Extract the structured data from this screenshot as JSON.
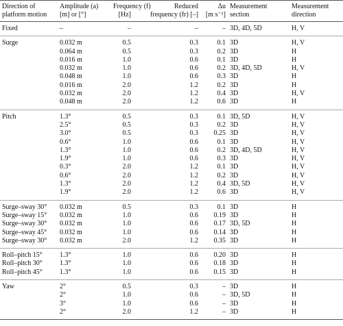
{
  "table": {
    "header": [
      [
        "Direction of",
        "platform motion"
      ],
      [
        "Amplitude (a)",
        "[m] or [°]"
      ],
      [
        "Frequency (f)",
        "[Hz]"
      ],
      [
        "Reduced",
        "frequency (fr) [–]"
      ],
      [
        "Δu",
        "[m s⁻¹]"
      ],
      [
        "Measurement",
        "section"
      ],
      [
        "Measurement",
        "direction"
      ]
    ],
    "groups": [
      {
        "rows": [
          [
            "Fixed",
            "–",
            "–",
            "–",
            "–",
            "3D, 4D, 5D",
            "H, V"
          ]
        ]
      },
      {
        "rows": [
          [
            "Surge",
            "0.032 m",
            "0.5",
            "0.3",
            "0.1",
            "3D",
            "H, V"
          ],
          [
            null,
            "0.064 m",
            "0.5",
            "0.3",
            "0.2",
            "3D",
            "H"
          ],
          [
            null,
            "0.016 m",
            "1.0",
            "0.6",
            "0.1",
            "3D",
            "H"
          ],
          [
            null,
            "0.032 m",
            "1.0",
            "0.6",
            "0.2",
            "3D, 4D, 5D",
            "H, V"
          ],
          [
            null,
            "0.048 m",
            "1.0",
            "0.6",
            "0.3",
            "3D",
            "H"
          ],
          [
            null,
            "0.016 m",
            "2.0",
            "1.2",
            "0.2",
            "3D",
            "H"
          ],
          [
            null,
            "0.032 m",
            "2.0",
            "1.2",
            "0.4",
            "3D",
            "H, V"
          ],
          [
            null,
            "0.048 m",
            "2.0",
            "1.2",
            "0.6",
            "3D",
            "H"
          ]
        ]
      },
      {
        "rows": [
          [
            "Pitch",
            "1.3°",
            "0.5",
            "0.3",
            "0.1",
            "3D, 5D",
            "H, V"
          ],
          [
            null,
            "2.5°",
            "0.5",
            "0.3",
            "0.2",
            "3D",
            "H, V"
          ],
          [
            null,
            "3.0°",
            "0.5",
            "0.3",
            "0.25",
            "3D",
            "H, V"
          ],
          [
            null,
            "0.6°",
            "1.0",
            "0.6",
            "0.1",
            "3D",
            "H, V"
          ],
          [
            null,
            "1.3°",
            "1.0",
            "0.6",
            "0.2",
            "3D, 4D, 5D",
            "H, V"
          ],
          [
            null,
            "1.9°",
            "1.0",
            "0.6",
            "0.3",
            "3D",
            "H, V"
          ],
          [
            null,
            "0.3°",
            "2.0",
            "1.2",
            "0.1",
            "3D",
            "H, V"
          ],
          [
            null,
            "0.6°",
            "2.0",
            "1.2",
            "0.2",
            "3D",
            "H, V"
          ],
          [
            null,
            "1.3°",
            "2.0",
            "1.2",
            "0.4",
            "3D, 5D",
            "H, V"
          ],
          [
            null,
            "1.9°",
            "2.0",
            "1.2",
            "0.6",
            "3D",
            "H, V"
          ]
        ]
      },
      {
        "rows": [
          [
            "Surge–sway 30°",
            "0.032 m",
            "0.5",
            "0.3",
            "0.1",
            "3D",
            "H"
          ],
          [
            "Surge–sway 15°",
            "0.032 m",
            "1.0",
            "0.6",
            "0.19",
            "3D",
            "H"
          ],
          [
            "Surge–sway 30°",
            "0.032 m",
            "1.0",
            "0.6",
            "0.17",
            "3D, 5D",
            "H"
          ],
          [
            "Surge–sway 45°",
            "0.032 m",
            "1.0",
            "0.6",
            "0.14",
            "3D",
            "H"
          ],
          [
            "Surge–sway 30°",
            "0.032 m",
            "2.0",
            "1.2",
            "0.35",
            "3D",
            "H"
          ]
        ]
      },
      {
        "rows": [
          [
            "Roll–pitch 15°",
            "1.3°",
            "1.0",
            "0.6",
            "0.20",
            "3D",
            "H"
          ],
          [
            "Roll–pitch 30°",
            "1.3°",
            "1.0",
            "0.6",
            "0.18",
            "3D",
            "H"
          ],
          [
            "Roll–pitch 45°",
            "1.3°",
            "1.0",
            "0.6",
            "0.15",
            "3D",
            "H"
          ]
        ]
      },
      {
        "rows": [
          [
            "Yaw",
            "2°",
            "0.5",
            "0.3",
            "–",
            "3D",
            "H"
          ],
          [
            null,
            "2°",
            "1.0",
            "0.6",
            "–",
            "3D, 5D",
            "H"
          ],
          [
            null,
            "3°",
            "1.0",
            "0.6",
            "–",
            "3D",
            "H"
          ],
          [
            null,
            "2°",
            "2.0",
            "1.2",
            "–",
            "3D",
            "H"
          ]
        ]
      }
    ]
  }
}
